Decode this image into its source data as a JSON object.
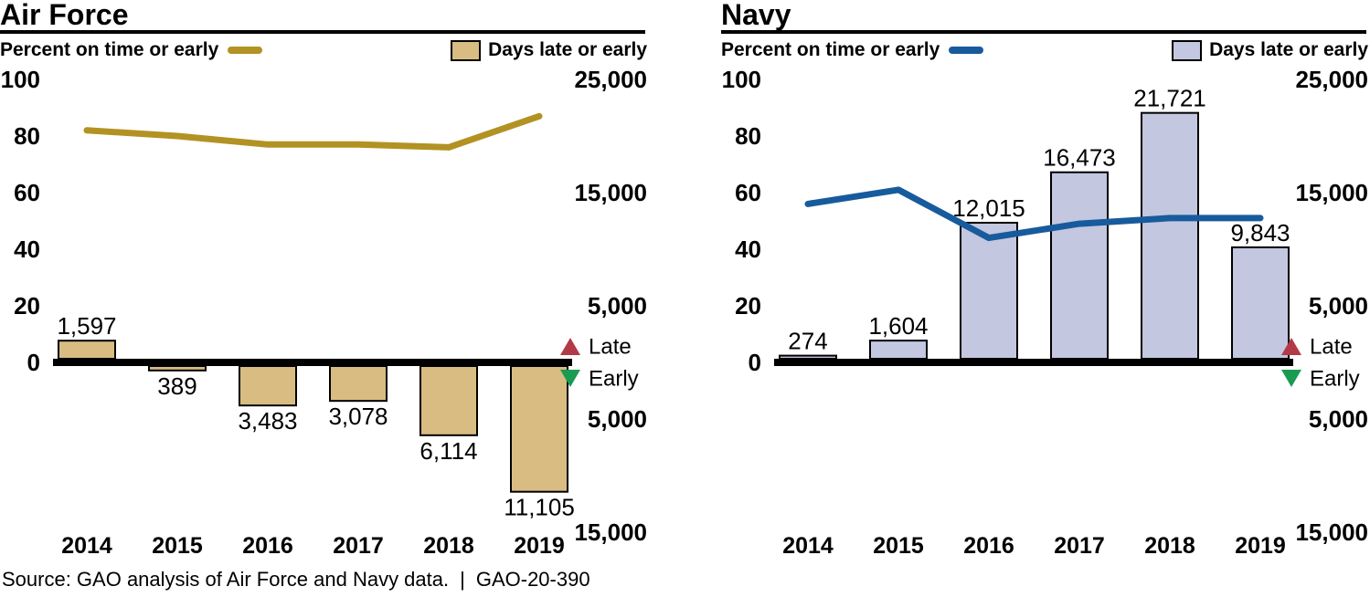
{
  "page": {
    "source_note": "Source: GAO analysis of Air Force and Navy data.",
    "separator": "|",
    "report_id": "GAO-20-390",
    "background": "#ffffff"
  },
  "shared": {
    "line_legend_label": "Percent on time or early",
    "bar_legend_label": "Days late or early",
    "late_label": "Late",
    "early_label": "Early",
    "late_color": "#b23a48",
    "early_color": "#199b52",
    "zero_line_color": "#000000",
    "left_axis_ticks": [
      {
        "label": "100",
        "value": 100
      },
      {
        "label": "80",
        "value": 80
      },
      {
        "label": "60",
        "value": 60
      },
      {
        "label": "40",
        "value": 40
      },
      {
        "label": "20",
        "value": 20
      },
      {
        "label": "0",
        "value": 0
      }
    ],
    "right_axis_ticks": [
      {
        "label": "25,000",
        "days": 25000
      },
      {
        "label": "15,000",
        "days": 15000
      },
      {
        "label": "5,000",
        "days": 5000
      },
      {
        "label": "5,000",
        "days": -5000
      },
      {
        "label": "15,000",
        "days": -15000
      }
    ]
  },
  "chart_data": [
    {
      "title": "Air Force",
      "type": "combo-bar-line",
      "categories": [
        "2014",
        "2015",
        "2016",
        "2017",
        "2018",
        "2019"
      ],
      "left_axis": {
        "label": "Percent on time or early",
        "range": [
          0,
          100
        ]
      },
      "right_axis": {
        "label": "Days late or early",
        "range": [
          -15000,
          25000
        ],
        "positive_means": "Late",
        "negative_means": "Early"
      },
      "series": [
        {
          "name": "Percent on time or early",
          "type": "line",
          "axis": "left",
          "color": "#b29222",
          "values": [
            82,
            80,
            77,
            77,
            76,
            87
          ]
        },
        {
          "name": "Days late or early",
          "type": "bar",
          "axis": "right",
          "color": "#d8bc82",
          "values": [
            1597,
            -389,
            -3483,
            -3078,
            -6114,
            -11105
          ],
          "labels": [
            "1,597",
            "389",
            "3,483",
            "3,078",
            "6,114",
            "11,105"
          ]
        }
      ]
    },
    {
      "title": "Navy",
      "type": "combo-bar-line",
      "categories": [
        "2014",
        "2015",
        "2016",
        "2017",
        "2018",
        "2019"
      ],
      "left_axis": {
        "label": "Percent on time or early",
        "range": [
          0,
          100
        ]
      },
      "right_axis": {
        "label": "Days late or early",
        "range": [
          -15000,
          25000
        ],
        "positive_means": "Late",
        "negative_means": "Early"
      },
      "series": [
        {
          "name": "Percent on time or early",
          "type": "line",
          "axis": "left",
          "color": "#175b9d",
          "values": [
            56,
            61,
            44,
            49,
            51,
            51
          ]
        },
        {
          "name": "Days late or early",
          "type": "bar",
          "axis": "right",
          "color": "#c3c7e0",
          "values": [
            274,
            1604,
            12015,
            16473,
            21721,
            9843
          ],
          "labels": [
            "274",
            "1,604",
            "12,015",
            "16,473",
            "21,721",
            "9,843"
          ]
        }
      ]
    }
  ]
}
